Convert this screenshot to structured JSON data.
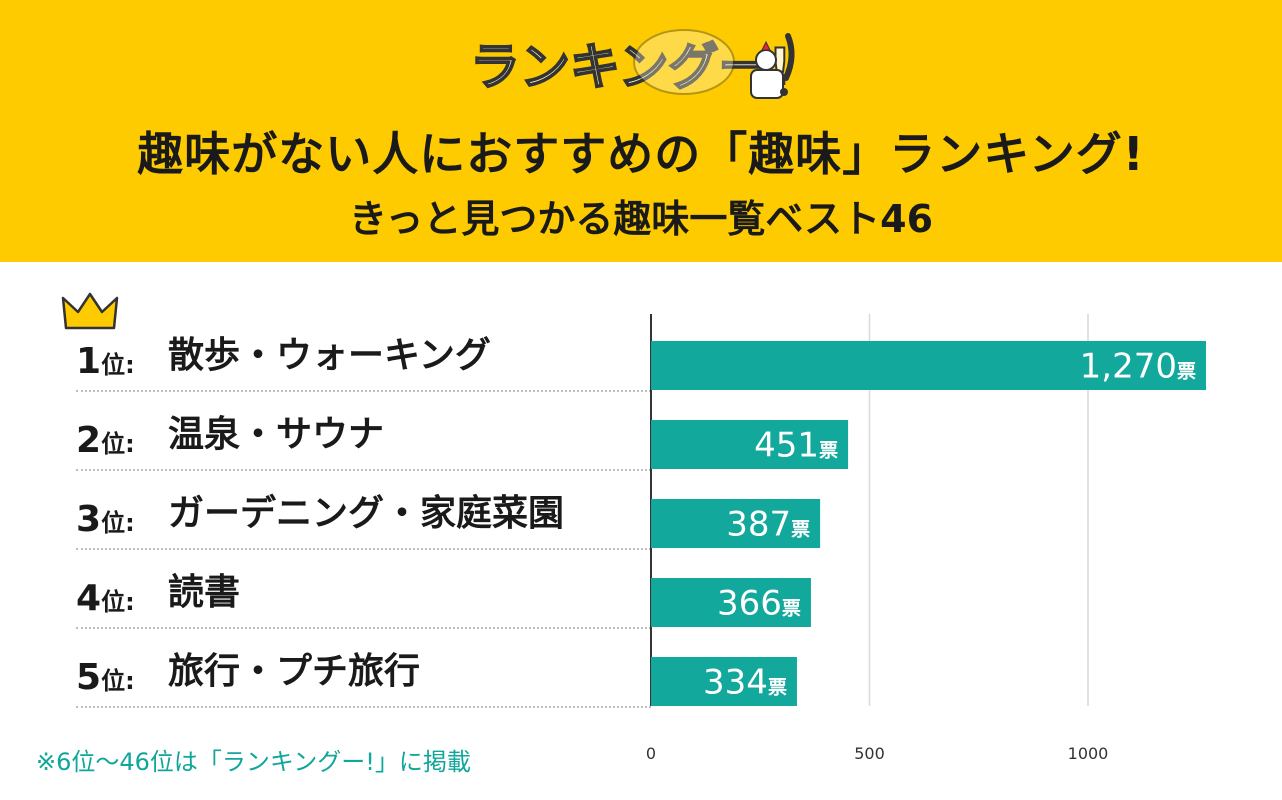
{
  "logo_text": "ランキングー!",
  "header": {
    "title_line1": "趣味がない人におすすめの「趣味」ランキング!",
    "title_line2": "きっと見つかる趣味一覧ベスト46"
  },
  "rank_suffix": "位",
  "rank_colon": ":",
  "unit": "票",
  "footnote": "※6位〜46位は「ランキングー!」に掲載",
  "colors": {
    "header_bg": "#fecb00",
    "bar": "#13a89c",
    "footnote": "#10a79a",
    "crown": "#fecb00"
  },
  "rankings": [
    {
      "rank": "1",
      "name": "散歩・ウォーキング",
      "votes_label": "1,270"
    },
    {
      "rank": "2",
      "name": "温泉・サウナ",
      "votes_label": "451"
    },
    {
      "rank": "3",
      "name": "ガーデニング・家庭菜園",
      "votes_label": "387"
    },
    {
      "rank": "4",
      "name": "読書",
      "votes_label": "366"
    },
    {
      "rank": "5",
      "name": "旅行・プチ旅行",
      "votes_label": "334"
    }
  ],
  "chart_data": {
    "type": "bar",
    "orientation": "horizontal",
    "categories": [
      "散歩・ウォーキング",
      "温泉・サウナ",
      "ガーデニング・家庭菜園",
      "読書",
      "旅行・プチ旅行"
    ],
    "values": [
      1270,
      451,
      387,
      366,
      334
    ],
    "data_labels": [
      "1,270",
      "451",
      "387",
      "366",
      "334"
    ],
    "unit": "票",
    "xlim": [
      0,
      1270
    ],
    "xticks": [
      0,
      500,
      1000
    ],
    "xtick_labels": [
      "0",
      "500",
      "1000"
    ],
    "grid": true
  }
}
